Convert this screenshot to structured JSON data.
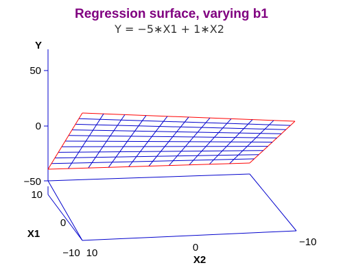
{
  "chart_data": {
    "type": "surface",
    "title": "Regression surface, varying b1",
    "subtitle": "Y = −5∗X1 + 1∗X2",
    "axes": {
      "y": {
        "label": "Y",
        "ticks": [
          "50",
          "0",
          "−50"
        ],
        "range": [
          -50,
          50
        ]
      },
      "x1": {
        "label": "X1",
        "ticks": [
          "10",
          "0",
          "−10"
        ],
        "range": [
          -10,
          10
        ]
      },
      "x2": {
        "label": "X2",
        "ticks": [
          "10",
          "0",
          "−10"
        ],
        "range": [
          -10,
          10
        ]
      }
    },
    "surface": {
      "equation": {
        "b1": -5,
        "b2": 1
      },
      "x1_range": [
        -10,
        10
      ],
      "x2_range": [
        -10,
        10
      ],
      "grid_steps": 10
    },
    "colors": {
      "title": "#800080",
      "axes": "#0000cc",
      "grid": "#0000cc",
      "edge": "#ff0000",
      "text": "#000000"
    }
  }
}
